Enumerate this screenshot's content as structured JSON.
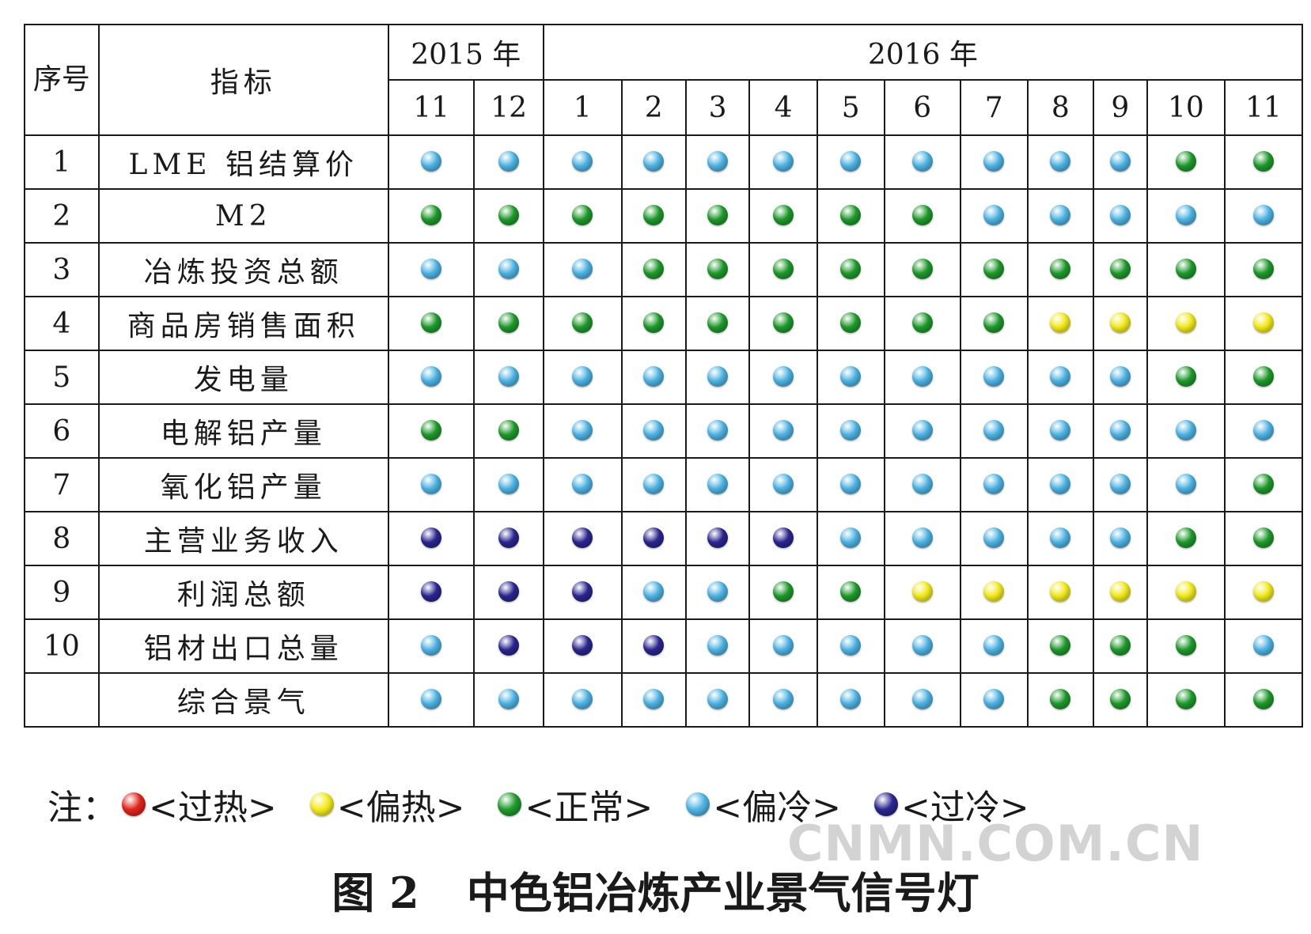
{
  "chart_data": {
    "type": "table",
    "header": {
      "seq_label": "序号",
      "indicator_label": "指标",
      "year_groups": [
        {
          "year": "2015 年",
          "months": [
            "11",
            "12"
          ]
        },
        {
          "year": "2016 年",
          "months": [
            "1",
            "2",
            "3",
            "4",
            "5",
            "6",
            "7",
            "8",
            "9",
            "10",
            "11"
          ]
        }
      ]
    },
    "rows": [
      {
        "seq": "1",
        "name": "LME 铝结算价",
        "signals": [
          "偏冷",
          "偏冷",
          "偏冷",
          "偏冷",
          "偏冷",
          "偏冷",
          "偏冷",
          "偏冷",
          "偏冷",
          "偏冷",
          "偏冷",
          "正常",
          "正常"
        ]
      },
      {
        "seq": "2",
        "name": "M2",
        "signals": [
          "正常",
          "正常",
          "正常",
          "正常",
          "正常",
          "正常",
          "正常",
          "正常",
          "偏冷",
          "偏冷",
          "偏冷",
          "偏冷",
          "偏冷"
        ]
      },
      {
        "seq": "3",
        "name": "冶炼投资总额",
        "signals": [
          "偏冷",
          "偏冷",
          "偏冷",
          "正常",
          "正常",
          "正常",
          "正常",
          "正常",
          "正常",
          "正常",
          "正常",
          "正常",
          "正常"
        ]
      },
      {
        "seq": "4",
        "name": "商品房销售面积",
        "signals": [
          "正常",
          "正常",
          "正常",
          "正常",
          "正常",
          "正常",
          "正常",
          "正常",
          "正常",
          "偏热",
          "偏热",
          "偏热",
          "偏热"
        ]
      },
      {
        "seq": "5",
        "name": "发电量",
        "signals": [
          "偏冷",
          "偏冷",
          "偏冷",
          "偏冷",
          "偏冷",
          "偏冷",
          "偏冷",
          "偏冷",
          "偏冷",
          "偏冷",
          "偏冷",
          "正常",
          "正常"
        ]
      },
      {
        "seq": "6",
        "name": "电解铝产量",
        "signals": [
          "正常",
          "正常",
          "偏冷",
          "偏冷",
          "偏冷",
          "偏冷",
          "偏冷",
          "偏冷",
          "偏冷",
          "偏冷",
          "偏冷",
          "偏冷",
          "偏冷"
        ]
      },
      {
        "seq": "7",
        "name": "氧化铝产量",
        "signals": [
          "偏冷",
          "偏冷",
          "偏冷",
          "偏冷",
          "偏冷",
          "偏冷",
          "偏冷",
          "偏冷",
          "偏冷",
          "偏冷",
          "偏冷",
          "偏冷",
          "正常"
        ]
      },
      {
        "seq": "8",
        "name": "主营业务收入",
        "signals": [
          "过冷",
          "过冷",
          "过冷",
          "过冷",
          "过冷",
          "过冷",
          "偏冷",
          "偏冷",
          "偏冷",
          "偏冷",
          "偏冷",
          "正常",
          "正常"
        ]
      },
      {
        "seq": "9",
        "name": "利润总额",
        "signals": [
          "过冷",
          "过冷",
          "过冷",
          "偏冷",
          "偏冷",
          "正常",
          "正常",
          "偏热",
          "偏热",
          "偏热",
          "偏热",
          "偏热",
          "偏热"
        ]
      },
      {
        "seq": "10",
        "name": "铝材出口总量",
        "signals": [
          "偏冷",
          "过冷",
          "过冷",
          "过冷",
          "偏冷",
          "偏冷",
          "偏冷",
          "偏冷",
          "偏冷",
          "正常",
          "正常",
          "正常",
          "偏冷"
        ]
      },
      {
        "seq": "",
        "name": "综合景气",
        "signals": [
          "偏冷",
          "偏冷",
          "偏冷",
          "偏冷",
          "偏冷",
          "偏冷",
          "偏冷",
          "偏冷",
          "偏冷",
          "正常",
          "正常",
          "正常",
          "正常"
        ]
      }
    ]
  },
  "legend": {
    "label": "注：",
    "items": [
      {
        "key": "过热",
        "text": "<过热>",
        "color": "#e0241b"
      },
      {
        "key": "偏热",
        "text": "<偏热>",
        "color": "#f2ea1d"
      },
      {
        "key": "正常",
        "text": "<正常>",
        "color": "#1f9a2c"
      },
      {
        "key": "偏冷",
        "text": "<偏冷>",
        "color": "#4fb4e4"
      },
      {
        "key": "过冷",
        "text": "<过冷>",
        "color": "#2b2690"
      }
    ]
  },
  "watermark": "CNMN.COM.CN",
  "caption": {
    "fig_no": "图 2",
    "title": "中色铝冶炼产业景气信号灯"
  }
}
